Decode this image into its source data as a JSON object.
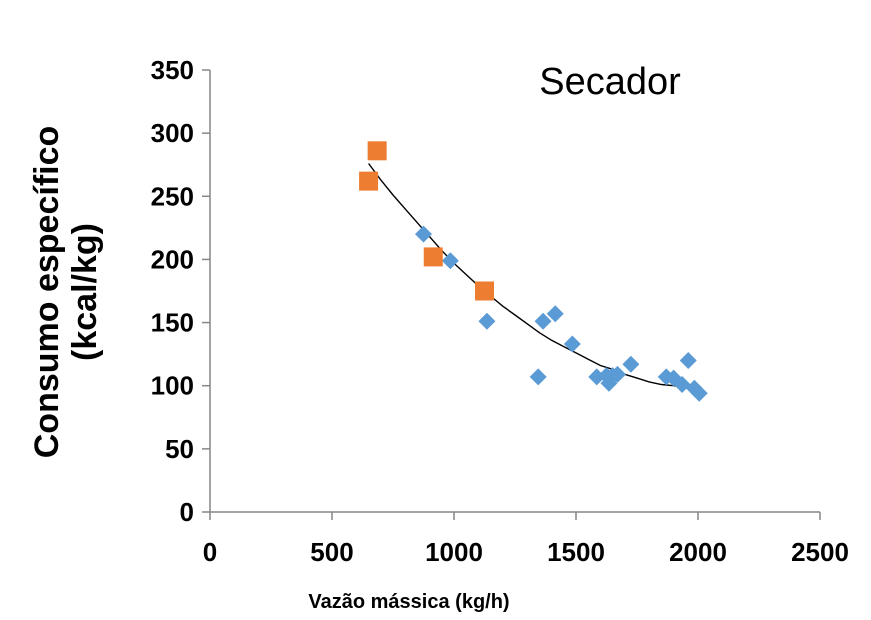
{
  "chart_data": {
    "type": "scatter",
    "title": "",
    "annotation": "Secador",
    "xlabel": "Vazão mássica (kg/h)",
    "ylabel_lines": [
      "Consumo específico",
      "(kcal/kg)"
    ],
    "xlim": [
      0,
      2500
    ],
    "ylim": [
      0,
      350
    ],
    "xticks": [
      0,
      500,
      1000,
      1500,
      2000,
      2500
    ],
    "yticks": [
      0,
      50,
      100,
      150,
      200,
      250,
      300,
      350
    ],
    "grid": false,
    "legend": "none",
    "series": [
      {
        "marker": "diamond",
        "color": "#5b9bd5",
        "points": [
          [
            875,
            220
          ],
          [
            985,
            199
          ],
          [
            1135,
            151
          ],
          [
            1345,
            107
          ],
          [
            1365,
            151
          ],
          [
            1415,
            157
          ],
          [
            1485,
            133
          ],
          [
            1585,
            107
          ],
          [
            1625,
            108
          ],
          [
            1635,
            102
          ],
          [
            1650,
            108
          ],
          [
            1670,
            109
          ],
          [
            1725,
            117
          ],
          [
            1870,
            107
          ],
          [
            1900,
            106
          ],
          [
            1935,
            101
          ],
          [
            1960,
            120
          ],
          [
            1985,
            98
          ],
          [
            2005,
            94
          ]
        ]
      },
      {
        "marker": "square",
        "color": "#ed7d31",
        "points": [
          [
            650,
            262
          ],
          [
            685,
            286
          ],
          [
            915,
            202
          ],
          [
            1125,
            175
          ]
        ]
      }
    ],
    "trendline": {
      "color": "#000000",
      "points": [
        [
          650,
          276
        ],
        [
          700,
          263
        ],
        [
          750,
          251
        ],
        [
          800,
          240
        ],
        [
          850,
          229
        ],
        [
          900,
          218
        ],
        [
          950,
          207
        ],
        [
          1000,
          197
        ],
        [
          1050,
          188
        ],
        [
          1100,
          179
        ],
        [
          1150,
          171
        ],
        [
          1200,
          163
        ],
        [
          1250,
          156
        ],
        [
          1300,
          149
        ],
        [
          1350,
          142
        ],
        [
          1400,
          136
        ],
        [
          1450,
          131
        ],
        [
          1500,
          126
        ],
        [
          1550,
          121
        ],
        [
          1600,
          116
        ],
        [
          1650,
          113
        ],
        [
          1700,
          109
        ],
        [
          1750,
          106
        ],
        [
          1800,
          103
        ],
        [
          1850,
          101
        ],
        [
          1900,
          100
        ],
        [
          1950,
          99
        ],
        [
          2000,
          98
        ]
      ]
    }
  }
}
